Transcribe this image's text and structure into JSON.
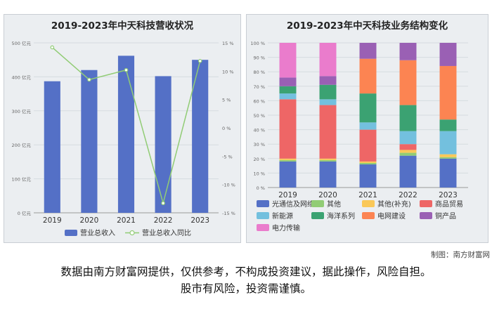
{
  "chart_data": [
    {
      "type": "bar",
      "title": "2019-2023年中天科技营收状况",
      "categories": [
        "2019",
        "2020",
        "2021",
        "2022",
        "2023"
      ],
      "series": [
        {
          "name": "营业总收入",
          "axis": "left",
          "values": [
            387,
            420,
            462,
            402,
            450
          ]
        },
        {
          "name": "营业总收入同比",
          "type": "line",
          "axis": "right",
          "values": [
            14.2,
            8.5,
            10.2,
            -13.3,
            11.8
          ]
        }
      ],
      "left_axis": {
        "ticks": [
          "0 亿元",
          "100 亿元",
          "200 亿元",
          "300 亿元",
          "400 亿元",
          "500 亿元"
        ],
        "ylim": [
          0,
          500
        ]
      },
      "right_axis": {
        "ticks": [
          "-15 %",
          "-10 %",
          "-5 %",
          "0 %",
          "5 %",
          "10 %",
          "15 %"
        ],
        "ylim": [
          -15,
          15
        ]
      },
      "bar_color": "#5470c6",
      "line_color": "#91cc75",
      "legend_position": "bottom",
      "grid": true
    },
    {
      "type": "bar",
      "stacked": true,
      "title": "2019-2023年中天科技业务结构变化",
      "categories": [
        "2019",
        "2020",
        "2021",
        "2022",
        "2023"
      ],
      "y_ticks": [
        "0 %",
        "10 %",
        "20 %",
        "30 %",
        "40 %",
        "50 %",
        "60 %",
        "70 %",
        "80 %",
        "90 %",
        "100 %"
      ],
      "ylim": [
        0,
        100
      ],
      "series": [
        {
          "name": "光通信及网络",
          "color": "#5470c6",
          "values": [
            18,
            18,
            16,
            22,
            20
          ]
        },
        {
          "name": "其他",
          "color": "#91cc75",
          "values": [
            1,
            1,
            1,
            2,
            1
          ]
        },
        {
          "name": "其他(补充)",
          "color": "#fac858",
          "values": [
            1,
            1,
            1,
            2,
            2
          ]
        },
        {
          "name": "商品贸易",
          "color": "#ee6666",
          "values": [
            41,
            37,
            22,
            4,
            0
          ]
        },
        {
          "name": "新能源",
          "color": "#73c0de",
          "values": [
            4,
            4,
            5,
            9,
            16
          ]
        },
        {
          "name": "海洋系列",
          "color": "#3ba272",
          "values": [
            5,
            10,
            20,
            18,
            8
          ]
        },
        {
          "name": "电网建设",
          "color": "#fc8452",
          "values": [
            0,
            0,
            24,
            31,
            37
          ]
        },
        {
          "name": "铜产品",
          "color": "#9a60b4",
          "values": [
            6,
            6,
            11,
            12,
            16
          ]
        },
        {
          "name": "电力传输",
          "color": "#ea7ccc",
          "values": [
            24,
            23,
            0,
            0,
            0
          ]
        }
      ],
      "legend_position": "bottom",
      "grid": true
    }
  ],
  "footer": {
    "credit": "制图：南方财富网",
    "disclaimer_line1": "数据由南方财富网提供，仅供参考，不构成投资建议，据此操作，风险自担。",
    "disclaimer_line2": "股市有风险，投资需谨慎。"
  }
}
